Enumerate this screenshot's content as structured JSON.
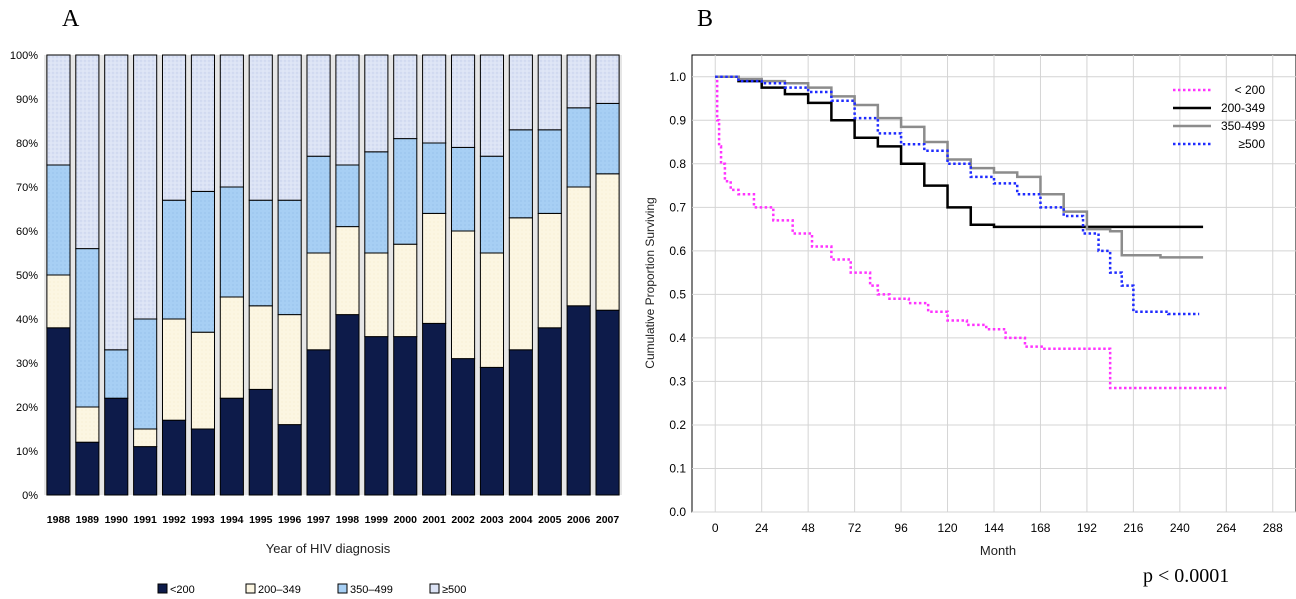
{
  "panel_labels": {
    "a": "A",
    "b": "B"
  },
  "p_value": "p < 0.0001",
  "colors": {
    "lt200": "#0d1b4a",
    "c200_349": "#fcf6e2",
    "c350_499": "#a7cff4",
    "ge500": "#dce3f5",
    "km_lt200": "#ff33ff",
    "km_200_349": "#000000",
    "km_350_499": "#8c8c8c",
    "km_ge500": "#1f2bff"
  },
  "chart_data": [
    {
      "type": "bar",
      "stacked": true,
      "title": "",
      "xlabel": "Year of HIV diagnosis",
      "ylabel": "",
      "ylim": [
        0,
        100
      ],
      "yticks": [
        "0%",
        "10%",
        "20%",
        "30%",
        "40%",
        "50%",
        "60%",
        "70%",
        "80%",
        "90%",
        "100%"
      ],
      "categories": [
        "1988",
        "1989",
        "1990",
        "1991",
        "1992",
        "1993",
        "1994",
        "1995",
        "1996",
        "1997",
        "1998",
        "1999",
        "2000",
        "2001",
        "2002",
        "2003",
        "2004",
        "2005",
        "2006",
        "2007"
      ],
      "series": [
        {
          "name": "<200",
          "values": [
            38,
            12,
            22,
            11,
            17,
            15,
            22,
            24,
            16,
            33,
            41,
            36,
            36,
            39,
            31,
            29,
            33,
            38,
            43,
            42
          ]
        },
        {
          "name": "200–349",
          "values": [
            12,
            8,
            0,
            4,
            23,
            22,
            23,
            19,
            25,
            22,
            20,
            19,
            21,
            25,
            29,
            26,
            30,
            26,
            27,
            31
          ]
        },
        {
          "name": "350–499",
          "values": [
            25,
            36,
            11,
            25,
            27,
            32,
            25,
            24,
            26,
            22,
            14,
            23,
            24,
            16,
            19,
            22,
            20,
            19,
            18,
            16
          ]
        },
        {
          "name": "≥500",
          "values": [
            25,
            44,
            67,
            60,
            33,
            31,
            30,
            33,
            33,
            23,
            25,
            22,
            19,
            20,
            21,
            23,
            17,
            17,
            12,
            11
          ]
        }
      ],
      "legend_position": "bottom"
    },
    {
      "type": "line",
      "subtype": "step",
      "title": "",
      "xlabel": "Month",
      "ylabel": "Cumulative Proportion Surviving",
      "xlim": [
        -12,
        300
      ],
      "ylim": [
        0,
        1.05
      ],
      "xticks": [
        0,
        24,
        48,
        72,
        96,
        120,
        144,
        168,
        192,
        216,
        240,
        264,
        288
      ],
      "yticks": [
        "0.0",
        "0.1",
        "0.2",
        "0.3",
        "0.4",
        "0.5",
        "0.6",
        "0.7",
        "0.8",
        "0.9",
        "1.0"
      ],
      "grid": true,
      "legend_position": "top-right",
      "series": [
        {
          "name": "< 200",
          "style": "dotted",
          "x": [
            0,
            1,
            2,
            3,
            5,
            8,
            12,
            20,
            30,
            40,
            50,
            60,
            70,
            80,
            84,
            90,
            100,
            110,
            120,
            130,
            140,
            150,
            160,
            170,
            190,
            204,
            210,
            264
          ],
          "y": [
            1.0,
            0.9,
            0.84,
            0.8,
            0.76,
            0.74,
            0.73,
            0.7,
            0.67,
            0.64,
            0.61,
            0.58,
            0.55,
            0.52,
            0.5,
            0.49,
            0.48,
            0.46,
            0.44,
            0.43,
            0.42,
            0.4,
            0.38,
            0.375,
            0.375,
            0.285,
            0.285,
            0.285
          ]
        },
        {
          "name": "200-349",
          "style": "solid",
          "x": [
            0,
            12,
            24,
            36,
            48,
            60,
            72,
            84,
            96,
            108,
            120,
            132,
            144,
            168,
            192,
            216,
            252
          ],
          "y": [
            1.0,
            0.99,
            0.975,
            0.96,
            0.94,
            0.9,
            0.86,
            0.84,
            0.8,
            0.75,
            0.7,
            0.66,
            0.655,
            0.655,
            0.655,
            0.655,
            0.655
          ]
        },
        {
          "name": "350-499",
          "style": "solid",
          "x": [
            0,
            12,
            24,
            36,
            48,
            60,
            72,
            84,
            96,
            108,
            120,
            132,
            144,
            156,
            168,
            180,
            192,
            204,
            210,
            230,
            252
          ],
          "y": [
            1.0,
            0.995,
            0.99,
            0.985,
            0.975,
            0.955,
            0.935,
            0.905,
            0.885,
            0.85,
            0.81,
            0.79,
            0.78,
            0.77,
            0.73,
            0.69,
            0.65,
            0.645,
            0.59,
            0.585,
            0.585
          ]
        },
        {
          "name": "≥500",
          "style": "dotted",
          "x": [
            0,
            12,
            24,
            36,
            48,
            60,
            72,
            84,
            96,
            108,
            120,
            132,
            144,
            156,
            168,
            180,
            190,
            198,
            204,
            210,
            216,
            234,
            250
          ],
          "y": [
            1.0,
            0.99,
            0.985,
            0.975,
            0.965,
            0.945,
            0.905,
            0.87,
            0.845,
            0.83,
            0.8,
            0.77,
            0.755,
            0.73,
            0.7,
            0.68,
            0.64,
            0.6,
            0.55,
            0.52,
            0.46,
            0.455,
            0.455
          ]
        }
      ]
    }
  ]
}
